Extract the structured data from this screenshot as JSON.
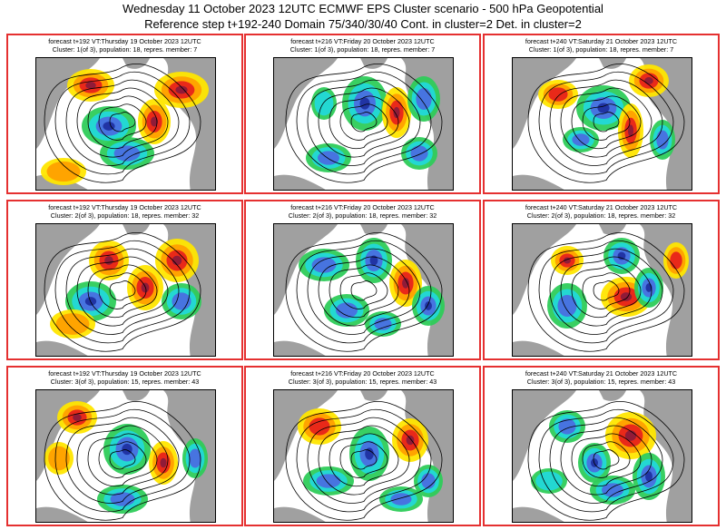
{
  "header": {
    "title_line1": "Wednesday 11 October 2023 12UTC ECMWF EPS Cluster scenario - 500 hPa Geopotential",
    "title_line2": "Reference step t+192-240 Domain 75/340/30/40 Cont. in cluster=2 Det. in cluster=2"
  },
  "colors": {
    "panel_border": "#e53030",
    "land": "#a0a0a0",
    "sea": "#ffffff",
    "positive_anomaly": [
      "#ffe600",
      "#ffa000",
      "#e8231a",
      "#8b1a3a"
    ],
    "negative_anomaly": [
      "#2ecc5a",
      "#22d8d8",
      "#4a6fe0",
      "#2030a0"
    ],
    "contour": "#000000"
  },
  "panels": [
    {
      "title": "forecast t+192 VT:Thursday 19 October 2023 12UTC",
      "subtitle": "Cluster: 1(of 3), population: 18, repres. member: 7"
    },
    {
      "title": "forecast t+216 VT:Friday 20 October 2023 12UTC",
      "subtitle": "Cluster: 1(of 3), population: 18, repres. member: 7"
    },
    {
      "title": "forecast t+240 VT:Saturday 21 October 2023 12UTC",
      "subtitle": "Cluster: 1(of 3), population: 18, repres. member: 7"
    },
    {
      "title": "forecast t+192 VT:Thursday 19 October 2023 12UTC",
      "subtitle": "Cluster: 2(of 3), population: 18, repres. member: 32"
    },
    {
      "title": "forecast t+216 VT:Friday 20 October 2023 12UTC",
      "subtitle": "Cluster: 2(of 3), population: 18, repres. member: 32"
    },
    {
      "title": "forecast t+240 VT:Saturday 21 October 2023 12UTC",
      "subtitle": "Cluster: 2(of 3), population: 18, repres. member: 32"
    },
    {
      "title": "forecast t+192 VT:Thursday 19 October 2023 12UTC",
      "subtitle": "Cluster: 3(of 3), population: 15, repres. member: 43"
    },
    {
      "title": "forecast t+216 VT:Friday 20 October 2023 12UTC",
      "subtitle": "Cluster: 3(of 3), population: 15, repres. member: 43"
    },
    {
      "title": "forecast t+240 VT:Saturday 21 October 2023 12UTC",
      "subtitle": "Cluster: 3(of 3), population: 15, repres. member: 43"
    }
  ]
}
